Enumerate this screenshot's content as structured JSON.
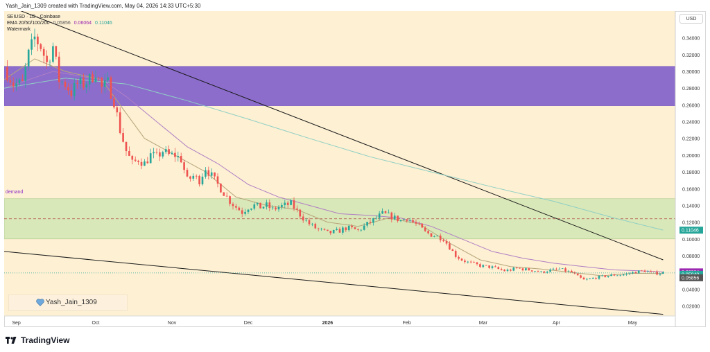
{
  "header": {
    "created_line": "Yash_Jain_1309 created with TradingView.com, May 04, 2026 14:33 UTC+5:30"
  },
  "legend": {
    "symbol_line": "SEIUSD · 1D · Coinbase",
    "ema_label": "EMA 20/50/100/200",
    "ema_values": [
      "0.05856",
      "0.06064",
      "0.11046"
    ],
    "watermark_label": "Watermark"
  },
  "currency_button": "USD",
  "watermark_text": "Yash_Jain_1309",
  "brand": "TradingView",
  "zone_label": "demand",
  "colors": {
    "up_candle": "#26a69a",
    "down_candle": "#ef5350",
    "background": "#fdf0d3",
    "supply_zone": "#8c6dcc",
    "demand_zone": "#d9e8b9",
    "ema20": "#b7a57a",
    "ema50": "#b07ec4",
    "ema200": "#8fcfc4"
  },
  "chart_data": {
    "type": "candlestick",
    "symbol": "SEIUSD",
    "timeframe": "1D",
    "exchange": "Coinbase",
    "y_axis": {
      "ticks": [
        "0.34000",
        "0.32000",
        "0.30000",
        "0.28000",
        "0.26000",
        "0.24000",
        "0.22000",
        "0.20000",
        "0.18000",
        "0.16000",
        "0.14000",
        "0.12000",
        "0.10000",
        "0.08000",
        "0.06000",
        "0.04000",
        "0.02000"
      ],
      "ylim": [
        0.008,
        0.372
      ]
    },
    "x_axis": {
      "ticks": [
        "Sep",
        "Oct",
        "Nov",
        "Dec",
        "2026",
        "Feb",
        "Mar",
        "Apr",
        "May"
      ]
    },
    "price_labels": [
      {
        "value": 0.11046,
        "text": "0.11046",
        "color": "#26a69a"
      },
      {
        "value": 0.06064,
        "text": "0.06064",
        "color": "#9c27b0"
      },
      {
        "value": 0.0594,
        "text": "0.05940",
        "color": "#26a69a"
      },
      {
        "value": 0.05856,
        "text": "0.05856",
        "color": "#555555"
      }
    ],
    "zones": [
      {
        "name": "supply",
        "from": 0.259,
        "to": 0.306
      },
      {
        "name": "demand",
        "from": 0.1,
        "to": 0.148,
        "midline": 0.124
      }
    ],
    "close_path": [
      [
        0,
        0.305
      ],
      [
        3,
        0.285
      ],
      [
        6,
        0.285
      ],
      [
        8,
        0.32
      ],
      [
        10,
        0.34
      ],
      [
        12,
        0.33
      ],
      [
        14,
        0.31
      ],
      [
        16,
        0.33
      ],
      [
        18,
        0.29
      ],
      [
        20,
        0.285
      ],
      [
        22,
        0.275
      ],
      [
        24,
        0.285
      ],
      [
        26,
        0.285
      ],
      [
        28,
        0.29
      ],
      [
        30,
        0.3
      ],
      [
        32,
        0.28
      ],
      [
        34,
        0.286
      ],
      [
        36,
        0.265
      ],
      [
        38,
        0.23
      ],
      [
        40,
        0.205
      ],
      [
        42,
        0.19
      ],
      [
        44,
        0.195
      ],
      [
        46,
        0.19
      ],
      [
        48,
        0.2
      ],
      [
        50,
        0.198
      ],
      [
        52,
        0.205
      ],
      [
        54,
        0.2
      ],
      [
        56,
        0.2
      ],
      [
        58,
        0.195
      ],
      [
        60,
        0.17
      ],
      [
        62,
        0.175
      ],
      [
        64,
        0.17
      ],
      [
        66,
        0.185
      ],
      [
        68,
        0.175
      ],
      [
        70,
        0.165
      ],
      [
        72,
        0.155
      ],
      [
        74,
        0.145
      ],
      [
        76,
        0.138
      ],
      [
        78,
        0.132
      ],
      [
        80,
        0.138
      ],
      [
        82,
        0.14
      ],
      [
        84,
        0.138
      ],
      [
        86,
        0.14
      ],
      [
        88,
        0.135
      ],
      [
        90,
        0.138
      ],
      [
        92,
        0.14
      ],
      [
        94,
        0.142
      ],
      [
        96,
        0.133
      ],
      [
        98,
        0.125
      ],
      [
        100,
        0.118
      ],
      [
        102,
        0.113
      ],
      [
        104,
        0.11
      ],
      [
        106,
        0.107
      ],
      [
        108,
        0.108
      ],
      [
        110,
        0.11
      ],
      [
        112,
        0.113
      ],
      [
        114,
        0.112
      ],
      [
        116,
        0.11
      ],
      [
        118,
        0.115
      ],
      [
        120,
        0.12
      ],
      [
        122,
        0.125
      ],
      [
        124,
        0.13
      ],
      [
        126,
        0.128
      ],
      [
        128,
        0.125
      ],
      [
        130,
        0.122
      ],
      [
        132,
        0.125
      ],
      [
        134,
        0.12
      ],
      [
        136,
        0.115
      ],
      [
        138,
        0.108
      ],
      [
        140,
        0.105
      ],
      [
        142,
        0.103
      ],
      [
        144,
        0.1
      ],
      [
        146,
        0.09
      ],
      [
        148,
        0.08
      ],
      [
        150,
        0.075
      ],
      [
        152,
        0.072
      ],
      [
        154,
        0.07
      ],
      [
        156,
        0.068
      ],
      [
        158,
        0.067
      ],
      [
        160,
        0.066
      ],
      [
        162,
        0.064
      ],
      [
        164,
        0.062
      ],
      [
        166,
        0.063
      ],
      [
        168,
        0.065
      ],
      [
        170,
        0.064
      ],
      [
        172,
        0.063
      ],
      [
        174,
        0.062
      ],
      [
        176,
        0.06
      ],
      [
        178,
        0.062
      ],
      [
        180,
        0.063
      ],
      [
        182,
        0.064
      ],
      [
        184,
        0.062
      ],
      [
        186,
        0.06
      ],
      [
        188,
        0.055
      ],
      [
        190,
        0.051
      ],
      [
        192,
        0.052
      ],
      [
        194,
        0.054
      ],
      [
        196,
        0.055
      ],
      [
        198,
        0.056
      ],
      [
        200,
        0.057
      ],
      [
        202,
        0.057
      ],
      [
        204,
        0.058
      ],
      [
        206,
        0.06
      ],
      [
        208,
        0.061
      ],
      [
        210,
        0.062
      ],
      [
        212,
        0.06
      ],
      [
        214,
        0.059
      ],
      [
        216,
        0.0594
      ]
    ],
    "ema_lines": [
      {
        "name": "EMA 20",
        "color": "#b7a57a",
        "points": [
          [
            0,
            0.29
          ],
          [
            10,
            0.315
          ],
          [
            20,
            0.3
          ],
          [
            32,
            0.29
          ],
          [
            38,
            0.26
          ],
          [
            46,
            0.22
          ],
          [
            56,
            0.2
          ],
          [
            66,
            0.18
          ],
          [
            76,
            0.15
          ],
          [
            86,
            0.14
          ],
          [
            96,
            0.135
          ],
          [
            106,
            0.12
          ],
          [
            116,
            0.115
          ],
          [
            126,
            0.125
          ],
          [
            136,
            0.118
          ],
          [
            146,
            0.095
          ],
          [
            156,
            0.075
          ],
          [
            166,
            0.067
          ],
          [
            176,
            0.064
          ],
          [
            186,
            0.06
          ],
          [
            196,
            0.056
          ],
          [
            206,
            0.059
          ],
          [
            216,
            0.0586
          ]
        ]
      },
      {
        "name": "EMA 50",
        "color": "#b07ec4",
        "points": [
          [
            0,
            0.28
          ],
          [
            16,
            0.3
          ],
          [
            32,
            0.29
          ],
          [
            40,
            0.27
          ],
          [
            50,
            0.24
          ],
          [
            60,
            0.21
          ],
          [
            70,
            0.19
          ],
          [
            80,
            0.165
          ],
          [
            90,
            0.15
          ],
          [
            100,
            0.14
          ],
          [
            110,
            0.13
          ],
          [
            120,
            0.128
          ],
          [
            130,
            0.125
          ],
          [
            140,
            0.115
          ],
          [
            150,
            0.1
          ],
          [
            160,
            0.085
          ],
          [
            170,
            0.077
          ],
          [
            180,
            0.071
          ],
          [
            190,
            0.067
          ],
          [
            200,
            0.063
          ],
          [
            208,
            0.062
          ],
          [
            216,
            0.0606
          ]
        ]
      },
      {
        "name": "EMA 200",
        "color": "#8fcfc4",
        "points": [
          [
            0,
            0.28
          ],
          [
            20,
            0.292
          ],
          [
            40,
            0.285
          ],
          [
            60,
            0.265
          ],
          [
            80,
            0.243
          ],
          [
            100,
            0.22
          ],
          [
            120,
            0.198
          ],
          [
            140,
            0.18
          ],
          [
            160,
            0.162
          ],
          [
            180,
            0.145
          ],
          [
            200,
            0.125
          ],
          [
            216,
            0.1105
          ]
        ]
      }
    ],
    "trendlines": [
      {
        "from": [
          0,
          0.38
        ],
        "to": [
          216,
          0.075
        ]
      },
      {
        "from": [
          0,
          0.085
        ],
        "to": [
          216,
          0.01
        ]
      }
    ]
  }
}
